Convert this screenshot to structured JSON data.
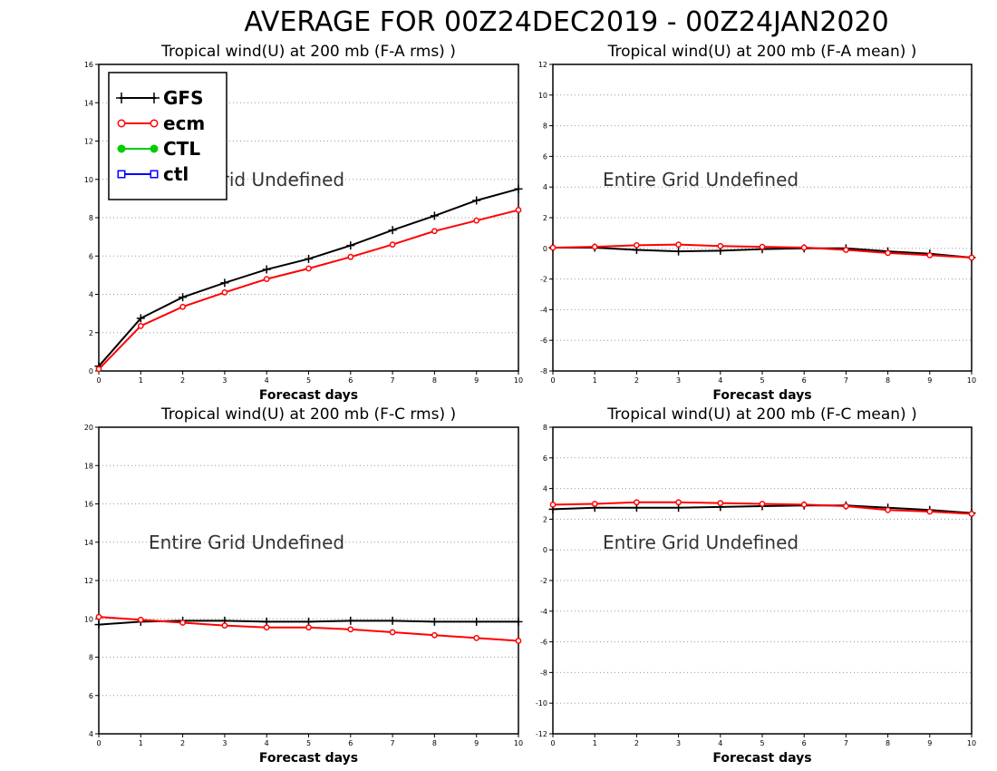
{
  "page_title": "AVERAGE FOR 00Z24DEC2019 - 00Z24JAN2020",
  "colors": {
    "GFS": "#000000",
    "ecm": "#ff0000",
    "CTL": "#00cc00",
    "ctl": "#0000ff",
    "grid": "#999999"
  },
  "legend": [
    {
      "label": "GFS",
      "marker": "plus",
      "color": "#000000"
    },
    {
      "label": "ecm",
      "marker": "open-circle",
      "color": "#ff0000"
    },
    {
      "label": "CTL",
      "marker": "filled-circle",
      "color": "#00cc00"
    },
    {
      "label": "ctl",
      "marker": "open-square",
      "color": "#0000ff"
    }
  ],
  "chart_data": [
    {
      "type": "line",
      "title": "Tropical wind(U) at 200 mb (F-A rms) )",
      "xlabel": "Forecast days",
      "ylabel": "",
      "note": "Entire Grid Undefined",
      "x": [
        0,
        1,
        2,
        3,
        4,
        5,
        6,
        7,
        8,
        9,
        10
      ],
      "xlim": [
        0,
        10
      ],
      "ylim": [
        0,
        16
      ],
      "yticks": [
        0,
        2,
        4,
        6,
        8,
        10,
        12,
        14,
        16
      ],
      "grid": true,
      "legend_position": "top-left",
      "series": [
        {
          "name": "GFS",
          "values": [
            0.25,
            2.75,
            3.85,
            4.6,
            5.3,
            5.85,
            6.55,
            7.35,
            8.1,
            8.9,
            9.5
          ]
        },
        {
          "name": "ecm",
          "values": [
            0.1,
            2.35,
            3.35,
            4.1,
            4.8,
            5.35,
            5.95,
            6.6,
            7.3,
            7.85,
            8.4
          ]
        }
      ]
    },
    {
      "type": "line",
      "title": "Tropical wind(U) at 200 mb (F-A mean) )",
      "xlabel": "Forecast days",
      "ylabel": "",
      "note": "Entire Grid Undefined",
      "x": [
        0,
        1,
        2,
        3,
        4,
        5,
        6,
        7,
        8,
        9,
        10
      ],
      "xlim": [
        0,
        10
      ],
      "ylim": [
        -8,
        12
      ],
      "yticks": [
        -8,
        -6,
        -4,
        -2,
        0,
        2,
        4,
        6,
        8,
        10,
        12
      ],
      "grid": true,
      "series": [
        {
          "name": "GFS",
          "values": [
            0.05,
            0.05,
            -0.1,
            -0.2,
            -0.15,
            -0.05,
            0.0,
            0.0,
            -0.2,
            -0.35,
            -0.6
          ]
        },
        {
          "name": "ecm",
          "values": [
            0.05,
            0.1,
            0.2,
            0.25,
            0.15,
            0.1,
            0.05,
            -0.1,
            -0.3,
            -0.45,
            -0.6
          ]
        }
      ]
    },
    {
      "type": "line",
      "title": "Tropical wind(U) at 200 mb (F-C rms) )",
      "xlabel": "Forecast days",
      "ylabel": "",
      "note": "Entire Grid Undefined",
      "x": [
        0,
        1,
        2,
        3,
        4,
        5,
        6,
        7,
        8,
        9,
        10
      ],
      "xlim": [
        0,
        10
      ],
      "ylim": [
        4,
        20
      ],
      "yticks": [
        4,
        6,
        8,
        10,
        12,
        14,
        16,
        18,
        20
      ],
      "grid": true,
      "series": [
        {
          "name": "GFS",
          "values": [
            9.7,
            9.85,
            9.9,
            9.9,
            9.85,
            9.85,
            9.9,
            9.9,
            9.85,
            9.85,
            9.85
          ]
        },
        {
          "name": "ecm",
          "values": [
            10.1,
            9.95,
            9.8,
            9.65,
            9.55,
            9.55,
            9.45,
            9.3,
            9.15,
            9.0,
            8.85
          ]
        }
      ]
    },
    {
      "type": "line",
      "title": "Tropical wind(U) at 200 mb (F-C mean) )",
      "xlabel": "Forecast days",
      "ylabel": "",
      "note": "Entire Grid Undefined",
      "x": [
        0,
        1,
        2,
        3,
        4,
        5,
        6,
        7,
        8,
        9,
        10
      ],
      "xlim": [
        0,
        10
      ],
      "ylim": [
        -12,
        8
      ],
      "yticks": [
        -12,
        -10,
        -8,
        -6,
        -4,
        -2,
        0,
        2,
        4,
        6,
        8
      ],
      "grid": true,
      "series": [
        {
          "name": "GFS",
          "values": [
            2.65,
            2.75,
            2.75,
            2.75,
            2.8,
            2.85,
            2.9,
            2.9,
            2.75,
            2.6,
            2.4
          ]
        },
        {
          "name": "ecm",
          "values": [
            2.95,
            3.0,
            3.1,
            3.1,
            3.05,
            3.0,
            2.95,
            2.85,
            2.6,
            2.5,
            2.35
          ]
        }
      ]
    }
  ]
}
